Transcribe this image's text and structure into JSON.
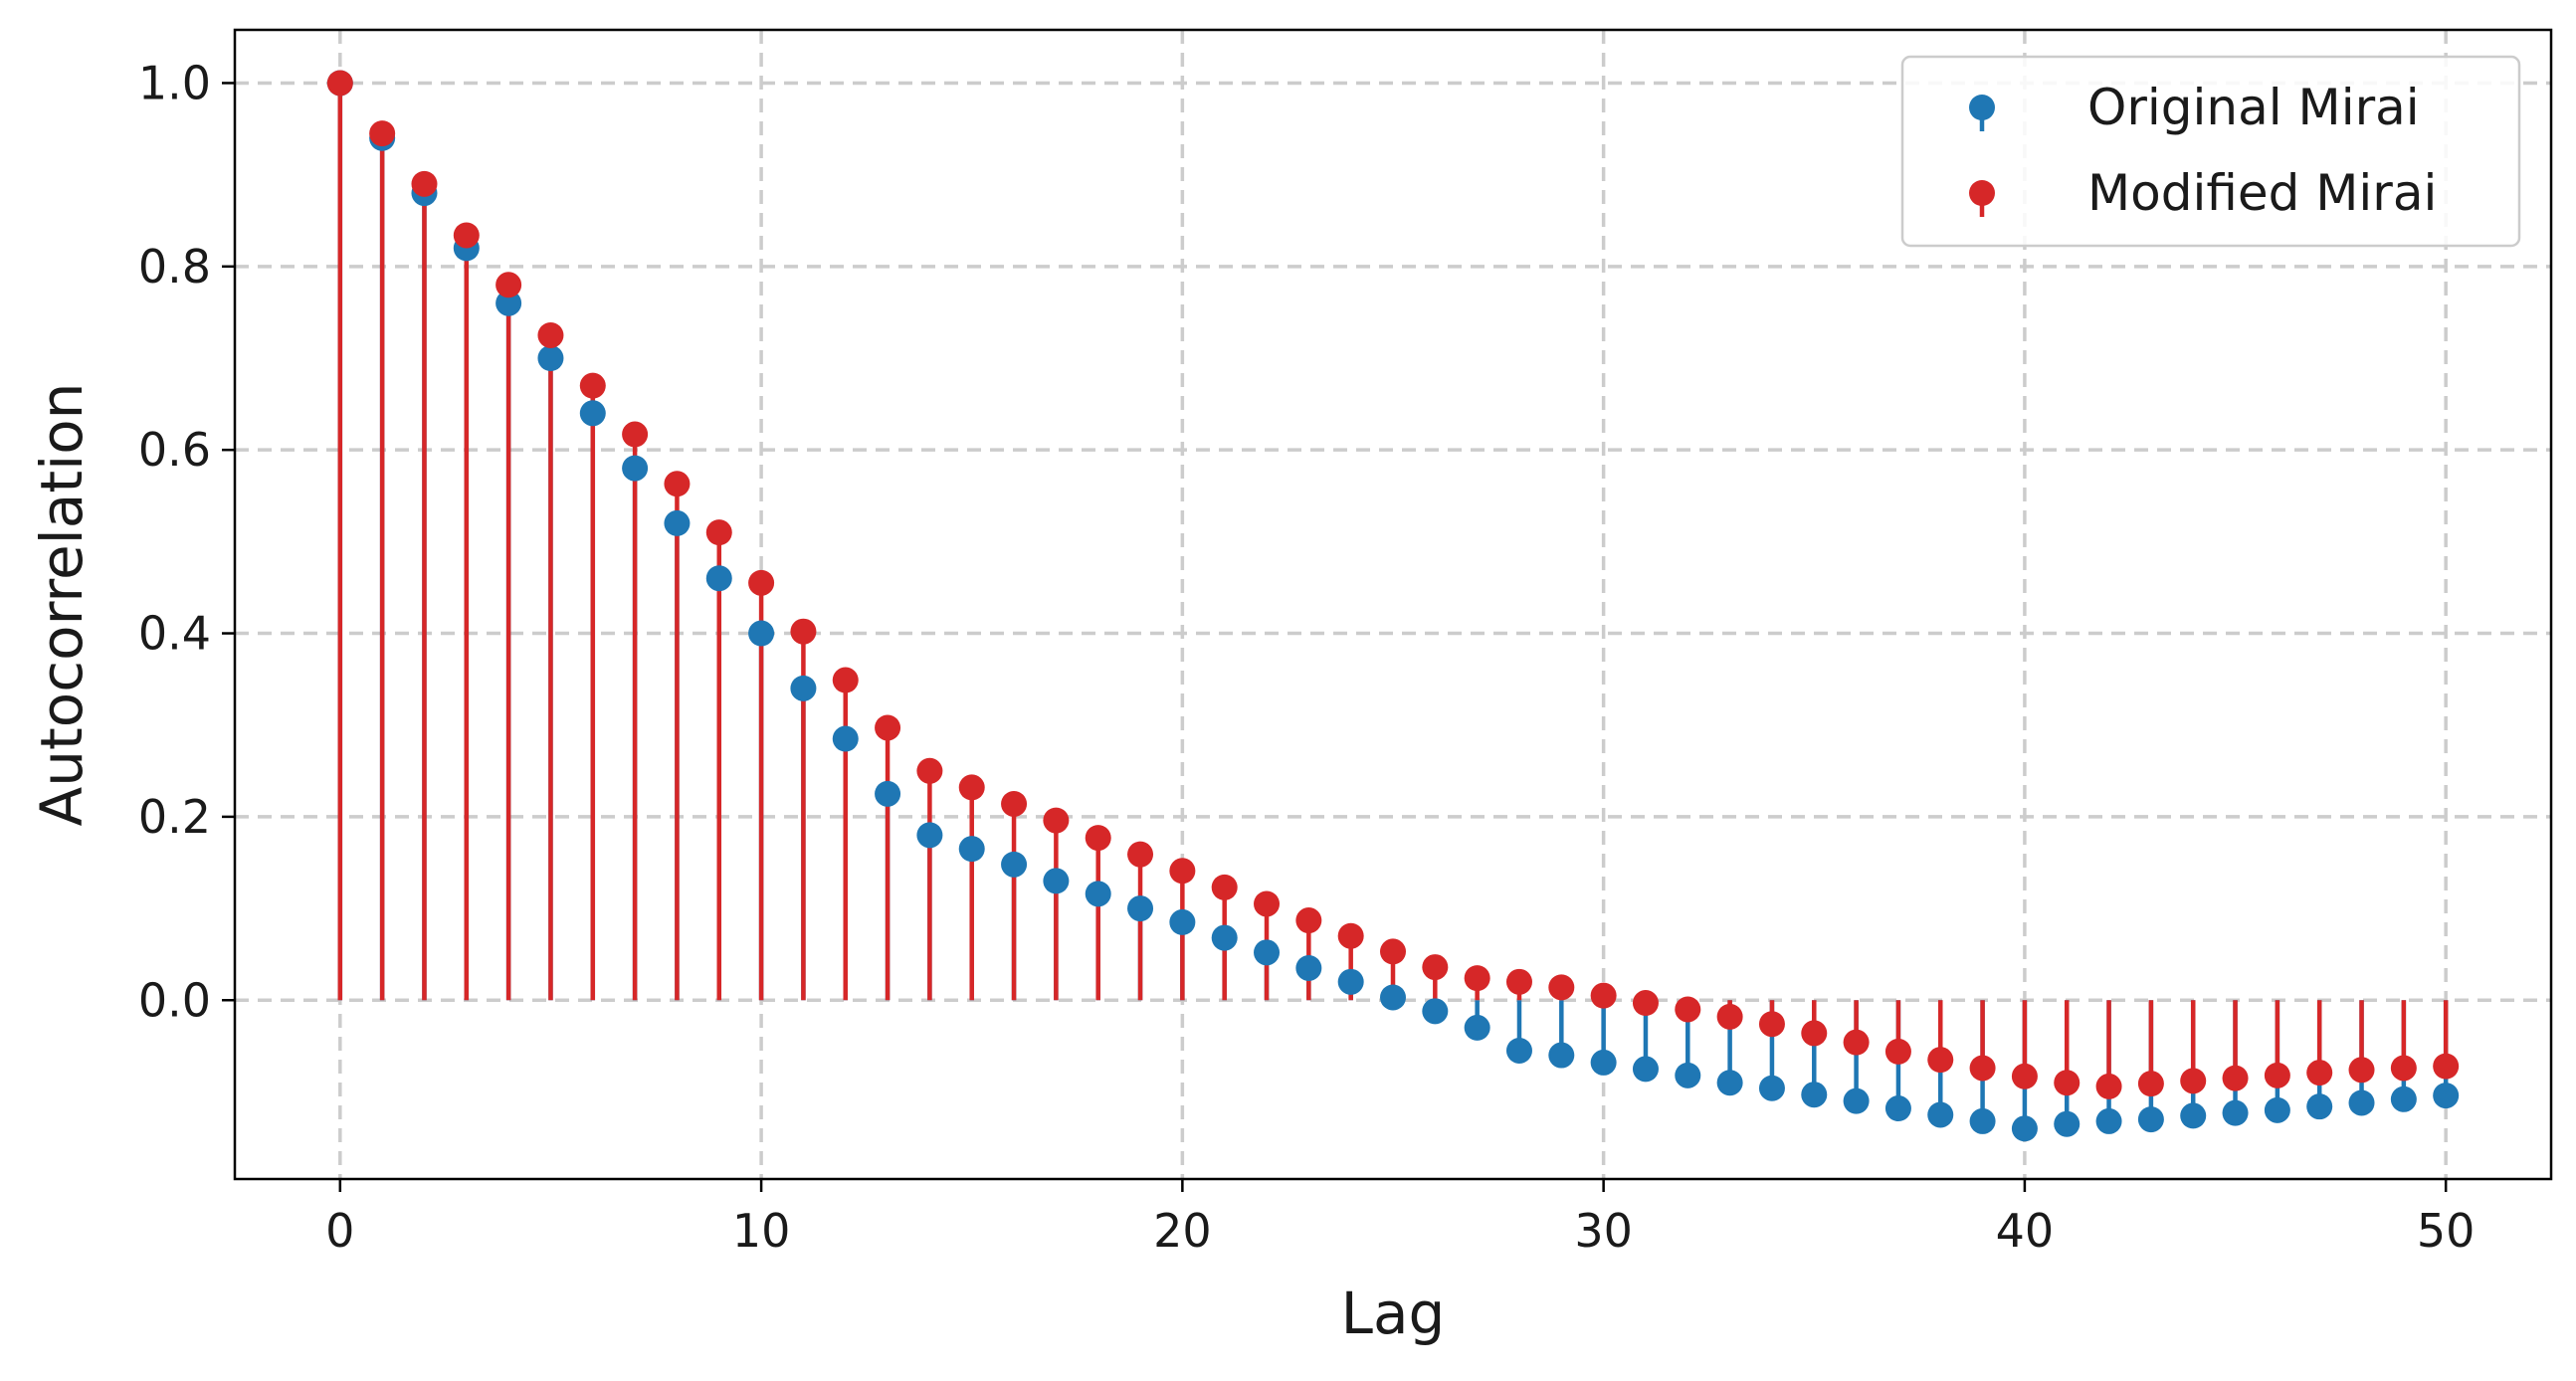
{
  "chart_data": {
    "type": "stem",
    "xlabel": "Lag",
    "ylabel": "Autocorrelation",
    "xlim": [
      -2.5,
      52.5
    ],
    "ylim": [
      -0.195,
      1.058
    ],
    "x_ticks": [
      "0",
      "10",
      "20",
      "30",
      "40",
      "50"
    ],
    "x_tick_values": [
      0,
      10,
      20,
      30,
      40,
      50
    ],
    "y_ticks": [
      "0.0",
      "0.2",
      "0.4",
      "0.6",
      "0.8",
      "1.0"
    ],
    "y_tick_values": [
      0.0,
      0.2,
      0.4,
      0.6,
      0.8,
      1.0
    ],
    "grid": true,
    "grid_style": "dashed",
    "legend_position": "top-right",
    "x": [
      0,
      1,
      2,
      3,
      4,
      5,
      6,
      7,
      8,
      9,
      10,
      11,
      12,
      13,
      14,
      15,
      16,
      17,
      18,
      19,
      20,
      21,
      22,
      23,
      24,
      25,
      26,
      27,
      28,
      29,
      30,
      31,
      32,
      33,
      34,
      35,
      36,
      37,
      38,
      39,
      40,
      41,
      42,
      43,
      44,
      45,
      46,
      47,
      48,
      49,
      50
    ],
    "series": [
      {
        "name": "Original Mirai",
        "color": "#1f77b4",
        "values": [
          1.0,
          0.94,
          0.88,
          0.82,
          0.76,
          0.7,
          0.64,
          0.58,
          0.52,
          0.46,
          0.4,
          0.34,
          0.285,
          0.225,
          0.18,
          0.165,
          0.148,
          0.13,
          0.116,
          0.1,
          0.085,
          0.068,
          0.052,
          0.035,
          0.02,
          0.003,
          -0.012,
          -0.03,
          -0.055,
          -0.06,
          -0.068,
          -0.075,
          -0.082,
          -0.09,
          -0.096,
          -0.103,
          -0.11,
          -0.118,
          -0.125,
          -0.132,
          -0.14,
          -0.135,
          -0.132,
          -0.13,
          -0.126,
          -0.123,
          -0.12,
          -0.116,
          -0.112,
          -0.108,
          -0.104
        ]
      },
      {
        "name": "Modified Mirai",
        "color": "#d62728",
        "values": [
          1.0,
          0.945,
          0.89,
          0.834,
          0.78,
          0.725,
          0.67,
          0.617,
          0.563,
          0.51,
          0.455,
          0.402,
          0.349,
          0.297,
          0.25,
          0.232,
          0.214,
          0.196,
          0.177,
          0.159,
          0.141,
          0.123,
          0.105,
          0.087,
          0.07,
          0.053,
          0.036,
          0.024,
          0.02,
          0.014,
          0.005,
          -0.003,
          -0.01,
          -0.018,
          -0.026,
          -0.036,
          -0.046,
          -0.056,
          -0.065,
          -0.074,
          -0.083,
          -0.09,
          -0.094,
          -0.091,
          -0.088,
          -0.085,
          -0.082,
          -0.079,
          -0.076,
          -0.074,
          -0.072
        ]
      }
    ]
  }
}
